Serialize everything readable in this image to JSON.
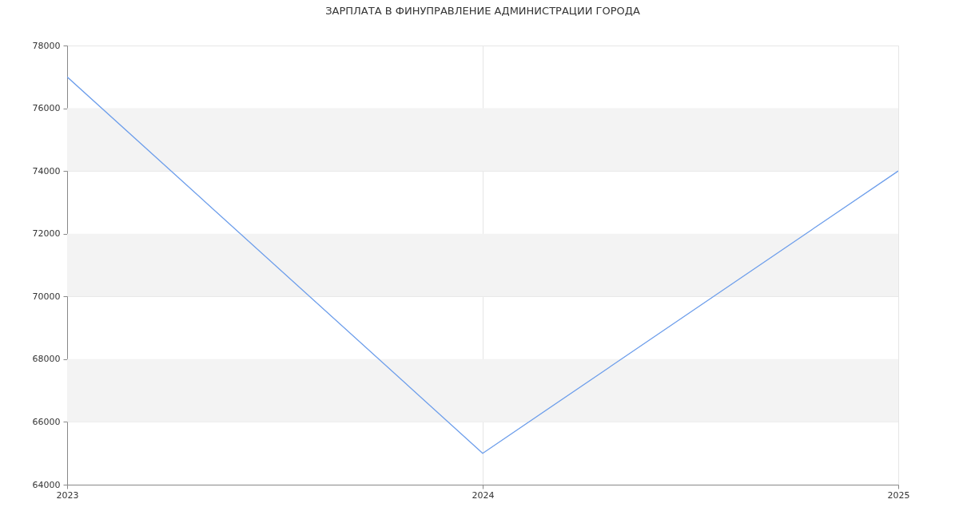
{
  "chart_data": {
    "type": "line",
    "title": "ЗАРПЛАТА В ФИНУПРАВЛЕНИЕ АДМИНИСТРАЦИИ ГОРОДА",
    "categories": [
      "2023",
      "2024",
      "2025"
    ],
    "series": [
      {
        "color": "#6d9eeb",
        "values": [
          77000,
          65000,
          74000
        ]
      }
    ],
    "ylim": [
      64000,
      78000
    ],
    "yticks": [
      64000,
      66000,
      68000,
      70000,
      72000,
      74000,
      76000,
      78000
    ],
    "grid": true,
    "marker": "none",
    "line_style": "solid",
    "legend": false
  }
}
